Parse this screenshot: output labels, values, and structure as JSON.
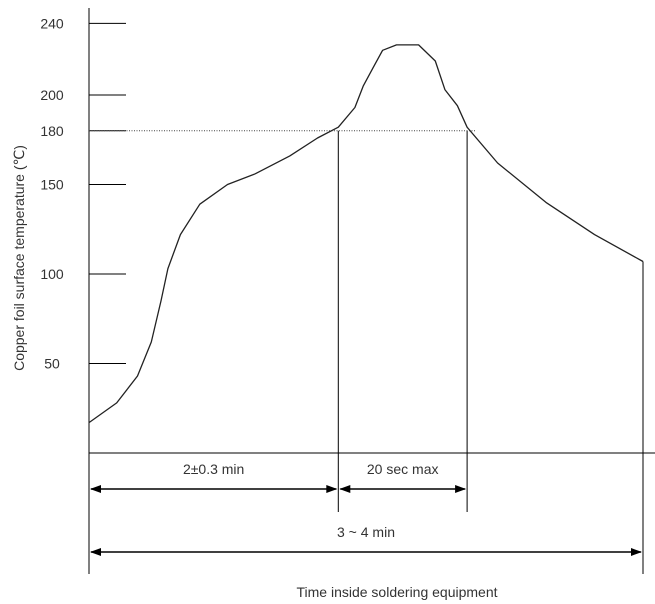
{
  "chart_data": {
    "type": "line",
    "title": "",
    "xlabel": "Time inside soldering equipment",
    "ylabel": "Copper foil surface temperature (℃)",
    "yticks": [
      {
        "value": 240,
        "label": "240"
      },
      {
        "value": 200,
        "label": "200"
      },
      {
        "value": 180,
        "label": "180"
      },
      {
        "value": 150,
        "label": "150"
      },
      {
        "value": 100,
        "label": "100"
      },
      {
        "value": 50,
        "label": "50"
      }
    ],
    "ylim": [
      0,
      240
    ],
    "reference_line": {
      "y": 180,
      "style": "dotted"
    },
    "series": [
      {
        "points": [
          [
            0.0,
            17
          ],
          [
            0.2,
            28
          ],
          [
            0.35,
            43
          ],
          [
            0.45,
            62
          ],
          [
            0.52,
            85
          ],
          [
            0.57,
            103
          ],
          [
            0.66,
            122
          ],
          [
            0.8,
            139
          ],
          [
            1.0,
            150
          ],
          [
            1.2,
            156
          ],
          [
            1.45,
            166
          ],
          [
            1.65,
            176
          ],
          [
            1.8,
            182
          ],
          [
            1.92,
            193
          ],
          [
            1.98,
            205
          ],
          [
            2.05,
            215
          ],
          [
            2.12,
            225
          ],
          [
            2.22,
            228
          ],
          [
            2.38,
            228
          ],
          [
            2.5,
            219
          ],
          [
            2.57,
            203
          ],
          [
            2.66,
            194
          ],
          [
            2.73,
            182
          ],
          [
            2.95,
            162
          ],
          [
            3.3,
            140
          ],
          [
            3.65,
            122
          ],
          [
            4.0,
            107
          ]
        ]
      }
    ],
    "annotations": [
      {
        "label": "2±0.3 min",
        "from": 0,
        "to": 1.8
      },
      {
        "label": "20 sec max",
        "from": 1.8,
        "to": 2.73
      },
      {
        "label": "3 ~ 4 min",
        "from": 0,
        "to": 4.0
      }
    ]
  }
}
